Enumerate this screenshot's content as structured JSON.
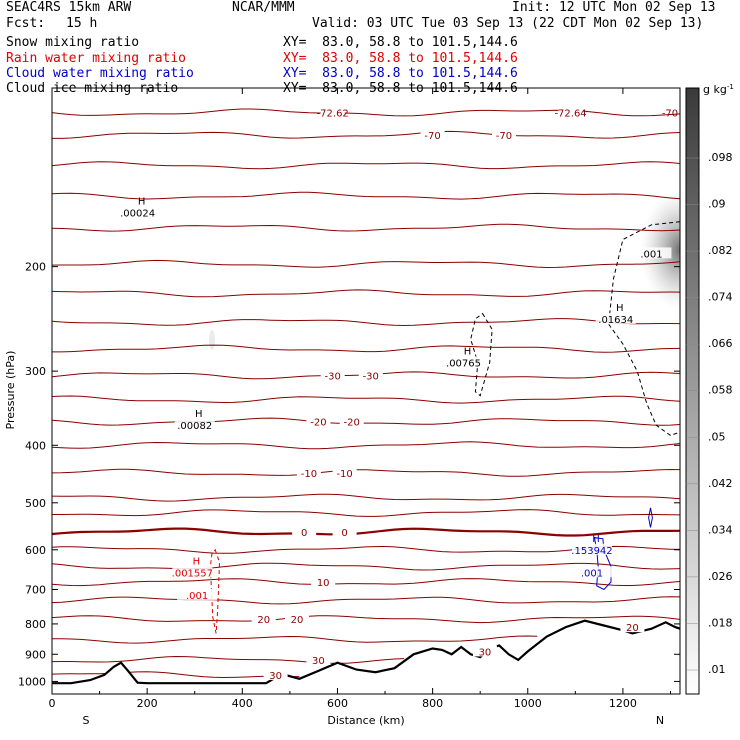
{
  "header": {
    "title": "SEAC4RS 15km ARW",
    "org": "NCAR/MMM",
    "init": "Init: 12 UTC Mon 02 Sep 13",
    "fcst_label": "Fcst:",
    "fcst_value": "15 h",
    "valid": "Valid: 03 UTC Tue 03 Sep 13 (22 CDT Mon 02 Sep 13)"
  },
  "fields": [
    {
      "name": "Snow mixing ratio",
      "xy": "XY=  83.0, 58.8 to 101.5,144.6",
      "color": "#000000"
    },
    {
      "name": "Rain water mixing ratio",
      "xy": "XY=  83.0, 58.8 to 101.5,144.6",
      "color": "#e00000"
    },
    {
      "name": "Cloud water mixing ratio",
      "xy": "XY=  83.0, 58.8 to 101.5,144.6",
      "color": "#0000cc"
    },
    {
      "name": "Cloud ice mixing ratio",
      "xy": "XY=  83.0, 58.8 to 101.5,144.6",
      "color": "#000000"
    }
  ],
  "colorbar": {
    "unit": "g kg",
    "unit_exp": "-1",
    "ticks": [
      ".01",
      ".018",
      ".026",
      ".034",
      ".042",
      ".05",
      ".058",
      ".066",
      ".074",
      ".082",
      ".09",
      ".098"
    ]
  },
  "chart_data": {
    "type": "cross-section contour",
    "xlabel": "Distance (km)",
    "ylabel": "Pressure (hPa)",
    "xlim": [
      0,
      1320
    ],
    "ylim": [
      1050,
      100
    ],
    "x_ticks": [
      0,
      200,
      400,
      600,
      800,
      1000,
      1200
    ],
    "y_ticks": [
      200,
      300,
      400,
      500,
      600,
      700,
      800,
      900,
      1000
    ],
    "y_tick_labels": [
      "200",
      "300",
      "400",
      "500",
      "600",
      "700",
      "800",
      "900",
      "1000"
    ],
    "end_labels": {
      "left": "S",
      "right": "N"
    },
    "temperature_contours": [
      {
        "p": 110,
        "label": "-72.62",
        "x": 590
      },
      {
        "p": 110,
        "label": "-72.64",
        "x": 1090
      },
      {
        "p": 110,
        "label": "-70",
        "x": 1340
      },
      {
        "p": 120,
        "label": "-70",
        "x": 800
      },
      {
        "p": 120,
        "label": "-70",
        "x": 950
      },
      {
        "p": 305,
        "label": "-30",
        "x": 590
      },
      {
        "p": 305,
        "label": "-30",
        "x": 670
      },
      {
        "p": 365,
        "label": "-20",
        "x": 560
      },
      {
        "p": 365,
        "label": "-20",
        "x": 630
      },
      {
        "p": 445,
        "label": "-10",
        "x": 540
      },
      {
        "p": 445,
        "label": "-10",
        "x": 615
      },
      {
        "p": 560,
        "label": "0",
        "x": 530
      },
      {
        "p": 560,
        "label": "0",
        "x": 615
      },
      {
        "p": 680,
        "label": "10",
        "x": 570
      },
      {
        "p": 785,
        "label": "20",
        "x": 445
      },
      {
        "p": 785,
        "label": "20",
        "x": 515
      },
      {
        "p": 810,
        "label": "20",
        "x": 1220
      },
      {
        "p": 890,
        "label": "30",
        "x": 910
      },
      {
        "p": 920,
        "label": "30",
        "x": 560
      },
      {
        "p": 975,
        "label": "30",
        "x": 470
      }
    ],
    "maxima": [
      {
        "field": "snow",
        "label": ".00024",
        "x": 180,
        "p": 162
      },
      {
        "field": "snow",
        "label": ".001",
        "x": 1260,
        "p": 190
      },
      {
        "field": "snow",
        "label": ".01634",
        "x": 1185,
        "p": 245
      },
      {
        "field": "snow",
        "label": ".00765",
        "x": 865,
        "p": 290
      },
      {
        "field": "snow",
        "label": ".00082",
        "x": 300,
        "p": 370
      },
      {
        "field": "rain",
        "label": ".001557",
        "x": 295,
        "p": 655
      },
      {
        "field": "rain",
        "label": ".001",
        "x": 305,
        "p": 715
      },
      {
        "field": "cloud_water",
        "label": ".153942",
        "x": 1135,
        "p": 600
      },
      {
        "field": "cloud_water",
        "label": ".001",
        "x": 1135,
        "p": 655
      }
    ],
    "max_marker_label": "H",
    "terrain": [
      [
        0,
        1007
      ],
      [
        40,
        1007
      ],
      [
        80,
        995
      ],
      [
        110,
        975
      ],
      [
        130,
        945
      ],
      [
        145,
        930
      ],
      [
        160,
        960
      ],
      [
        180,
        1005
      ],
      [
        200,
        1007
      ],
      [
        450,
        1007
      ],
      [
        470,
        985
      ],
      [
        490,
        975
      ],
      [
        520,
        990
      ],
      [
        560,
        960
      ],
      [
        600,
        930
      ],
      [
        640,
        955
      ],
      [
        680,
        965
      ],
      [
        720,
        950
      ],
      [
        760,
        900
      ],
      [
        800,
        880
      ],
      [
        820,
        885
      ],
      [
        840,
        900
      ],
      [
        860,
        875
      ],
      [
        880,
        900
      ],
      [
        900,
        910
      ],
      [
        920,
        880
      ],
      [
        940,
        870
      ],
      [
        960,
        900
      ],
      [
        980,
        920
      ],
      [
        1000,
        890
      ],
      [
        1040,
        840
      ],
      [
        1080,
        810
      ],
      [
        1120,
        790
      ],
      [
        1160,
        805
      ],
      [
        1200,
        820
      ],
      [
        1220,
        830
      ],
      [
        1260,
        815
      ],
      [
        1290,
        795
      ],
      [
        1310,
        810
      ],
      [
        1320,
        815
      ]
    ]
  }
}
